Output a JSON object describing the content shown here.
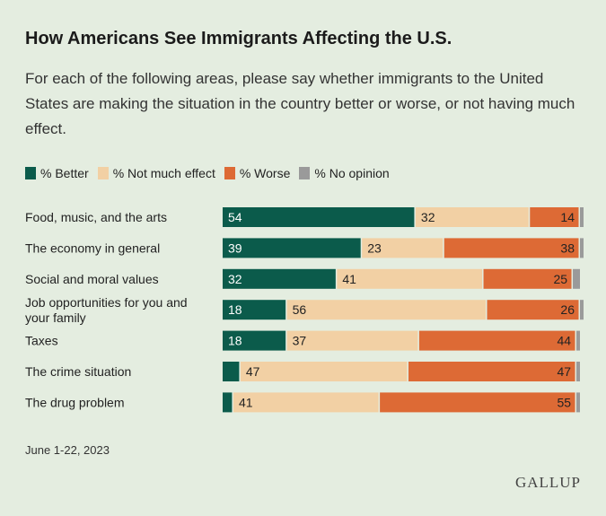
{
  "chart_data": {
    "type": "bar",
    "orientation": "horizontal",
    "stacked": true,
    "title": "How Americans See Immigrants Affecting the U.S.",
    "subtitle": "For each of the following areas, please say whether immigrants to the United States are making the situation in the country better or worse, or not having much effect.",
    "categories": [
      "Food, music, and the arts",
      "The economy in general",
      "Social and moral values",
      "Job opportunities for you and your family",
      "Taxes",
      "The crime situation",
      "The drug problem"
    ],
    "category_lines": [
      [
        "Food, music, and the arts"
      ],
      [
        "The economy in general"
      ],
      [
        "Social and moral values"
      ],
      [
        "Job opportunities for you and",
        "your family"
      ],
      [
        "Taxes"
      ],
      [
        "The crime situation"
      ],
      [
        "The drug problem"
      ]
    ],
    "series": [
      {
        "name": "% Better",
        "color": "#0b5b4b",
        "values": [
          54,
          39,
          32,
          18,
          18,
          5,
          3
        ],
        "labels": [
          "54",
          "39",
          "32",
          "18",
          "18",
          "",
          ""
        ]
      },
      {
        "name": "% Not much effect",
        "color": "#f2d0a4",
        "values": [
          32,
          23,
          41,
          56,
          37,
          47,
          41
        ],
        "labels": [
          "32",
          "23",
          "41",
          "56",
          "37",
          "47",
          "41"
        ]
      },
      {
        "name": "% Worse",
        "color": "#dd6a35",
        "values": [
          14,
          38,
          25,
          26,
          44,
          47,
          55
        ],
        "labels": [
          "14",
          "38",
          "25",
          "26",
          "44",
          "47",
          "55"
        ]
      },
      {
        "name": "% No opinion",
        "color": "#9a9a9a",
        "values": [
          1,
          1,
          2,
          1,
          1,
          1,
          1
        ],
        "labels": [
          "",
          "",
          "",
          "",
          "",
          "",
          ""
        ]
      }
    ],
    "xlim": [
      0,
      100
    ],
    "legend_position": "top-left"
  },
  "footnote": "June 1-22, 2023",
  "logo": "GALLUP"
}
